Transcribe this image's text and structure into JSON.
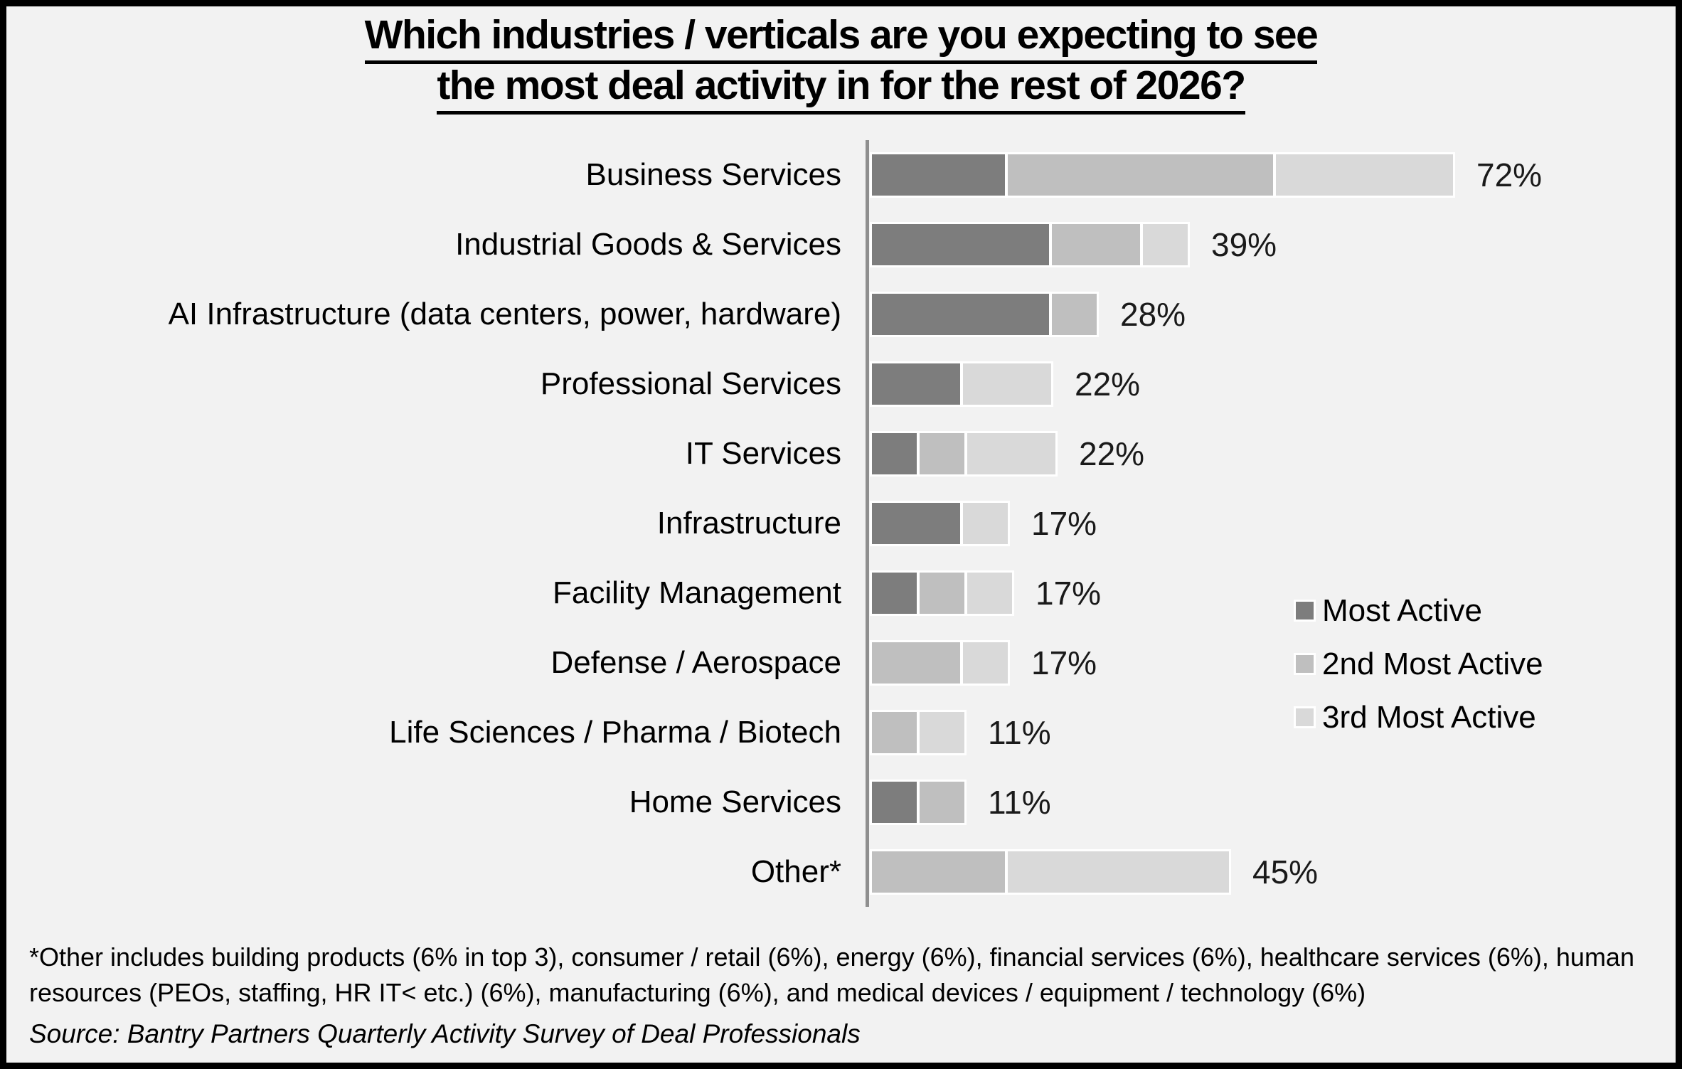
{
  "title": {
    "line1": "Which industries / verticals are you expecting to see",
    "line2": "the most deal activity in for the rest of 2026?"
  },
  "legend": {
    "position": "right-middle",
    "items": [
      {
        "label": "Most Active",
        "color": "#7d7d7d"
      },
      {
        "label": "2nd Most Active",
        "color": "#bfbfbf"
      },
      {
        "label": "3rd Most Active",
        "color": "#d9d9d9"
      }
    ]
  },
  "chart_data": {
    "type": "bar",
    "orientation": "horizontal",
    "stacked": true,
    "unit": "%",
    "xlim": [
      0,
      100
    ],
    "grid": false,
    "categories": [
      "Business Services",
      "Industrial Goods & Services",
      "AI Infrastructure (data centers, power, hardware)",
      "Professional Services",
      "IT Services",
      "Infrastructure",
      "Facility Management",
      "Defense / Aerospace",
      "Life Sciences / Pharma / Biotech",
      "Home Services",
      "Other*"
    ],
    "series": [
      {
        "name": "Most Active",
        "color": "#7d7d7d",
        "values": [
          16.7,
          22.2,
          22.2,
          11.1,
          5.6,
          11.1,
          5.6,
          0,
          0,
          5.6,
          0
        ]
      },
      {
        "name": "2nd Most Active",
        "color": "#bfbfbf",
        "values": [
          33.3,
          11.1,
          5.6,
          0,
          5.6,
          0,
          5.6,
          11.1,
          5.6,
          5.6,
          16.7
        ]
      },
      {
        "name": "3rd Most Active",
        "color": "#d9d9d9",
        "values": [
          22.2,
          5.6,
          0,
          11.1,
          11.1,
          5.6,
          5.6,
          5.6,
          5.6,
          0,
          27.8
        ]
      }
    ],
    "totals": [
      72,
      39,
      28,
      22,
      22,
      17,
      17,
      17,
      11,
      11,
      45
    ],
    "total_labels": [
      "72%",
      "39%",
      "28%",
      "22%",
      "22%",
      "17%",
      "17%",
      "17%",
      "11%",
      "11%",
      "45%"
    ]
  },
  "footnote": "*Other includes building products (6% in top 3), consumer / retail (6%), energy (6%), financial services (6%), healthcare services (6%), human resources (PEOs, staffing, HR IT< etc.) (6%), manufacturing (6%), and medical devices / equipment / technology (6%)",
  "source": "Source: Bantry Partners Quarterly Activity Survey of Deal Professionals"
}
